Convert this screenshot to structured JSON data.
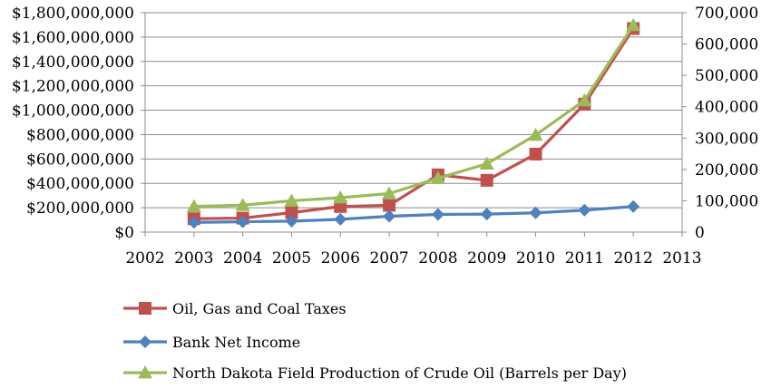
{
  "chart_data": {
    "type": "line",
    "x_ticks": [
      "2002",
      "2003",
      "2004",
      "2005",
      "2006",
      "2007",
      "2008",
      "2009",
      "2010",
      "2011",
      "2012",
      "2013"
    ],
    "xlim": [
      2002,
      2013
    ],
    "y_left": {
      "ylim": [
        0,
        1800000000
      ],
      "ticks": [
        0,
        200000000,
        400000000,
        600000000,
        800000000,
        1000000000,
        1200000000,
        1400000000,
        1600000000,
        1800000000
      ],
      "tick_labels": [
        "$0",
        "$200,000,000",
        "$400,000,000",
        "$600,000,000",
        "$800,000,000",
        "$1,000,000,000",
        "$1,200,000,000",
        "$1,400,000,000",
        "$1,600,000,000",
        "$1,800,000,000"
      ]
    },
    "y_right": {
      "ylim": [
        0,
        700000
      ],
      "ticks": [
        0,
        100000,
        200000,
        300000,
        400000,
        500000,
        600000,
        700000
      ],
      "tick_labels": [
        "0",
        "100,000",
        "200,000",
        "300,000",
        "400,000",
        "500,000",
        "600,000",
        "700,000"
      ]
    },
    "grid": "horizontal",
    "legend_placement": "bottom",
    "series": [
      {
        "name": "Oil, Gas and Coal Taxes",
        "axis": "left",
        "color": "#c0504d",
        "marker": "square",
        "x": [
          2003,
          2004,
          2005,
          2006,
          2007,
          2008,
          2009,
          2010,
          2011,
          2012
        ],
        "values": [
          110000000,
          115000000,
          160000000,
          210000000,
          220000000,
          470000000,
          425000000,
          640000000,
          1050000000,
          1670000000
        ]
      },
      {
        "name": "Bank Net Income",
        "axis": "left",
        "color": "#4f81bd",
        "marker": "diamond",
        "x": [
          2003,
          2004,
          2005,
          2006,
          2007,
          2008,
          2009,
          2010,
          2011,
          2012
        ],
        "values": [
          80000000,
          85000000,
          90000000,
          105000000,
          130000000,
          145000000,
          148000000,
          158000000,
          180000000,
          210000000
        ]
      },
      {
        "name": "North Dakota Field Production of Crude Oil  (Barrels per Day)",
        "axis": "right",
        "color": "#9bbb59",
        "marker": "triangle",
        "x": [
          2003,
          2004,
          2005,
          2006,
          2007,
          2008,
          2009,
          2010,
          2011,
          2012
        ],
        "values": [
          82000,
          86000,
          100000,
          110000,
          123000,
          172000,
          218000,
          310000,
          420000,
          660000
        ]
      }
    ]
  }
}
